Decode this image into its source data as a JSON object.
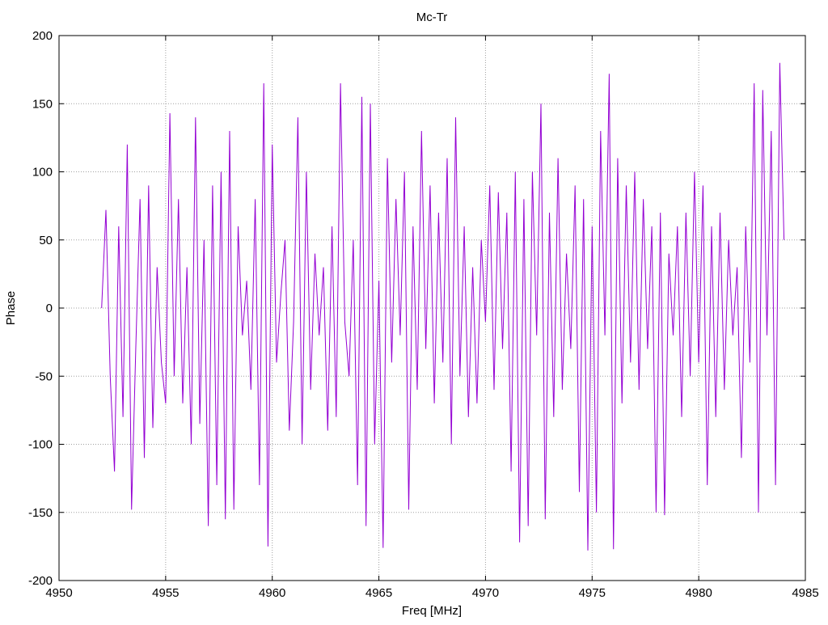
{
  "chart_data": {
    "type": "line",
    "title": "Mc-Tr",
    "xlabel": "Freq [MHz]",
    "ylabel": "Phase",
    "xlim": [
      4950,
      4985
    ],
    "ylim": [
      -200,
      200
    ],
    "xticks": [
      4950,
      4955,
      4960,
      4965,
      4970,
      4975,
      4980,
      4985
    ],
    "yticks": [
      -200,
      -150,
      -100,
      -50,
      0,
      50,
      100,
      150,
      200
    ],
    "grid": true,
    "legend": "none",
    "series": [
      {
        "name": "Phase",
        "color": "#9400d3",
        "x_start": 4952,
        "x_end": 4984,
        "values": [
          0,
          72,
          -50,
          -120,
          60,
          -80,
          120,
          -148,
          -30,
          80,
          -110,
          90,
          -88,
          30,
          -40,
          -70,
          143,
          -50,
          80,
          -70,
          30,
          -100,
          140,
          -85,
          50,
          -160,
          90,
          -130,
          100,
          -155,
          130,
          -148,
          60,
          -20,
          20,
          -60,
          80,
          -130,
          165,
          -175,
          120,
          -40,
          10,
          50,
          -90,
          -10,
          140,
          -100,
          100,
          -60,
          40,
          -20,
          30,
          -90,
          60,
          -80,
          165,
          -10,
          -50,
          50,
          -130,
          155,
          -160,
          150,
          -100,
          20,
          -176,
          110,
          -40,
          80,
          -20,
          100,
          -148,
          60,
          -60,
          130,
          -30,
          90,
          -70,
          70,
          -40,
          110,
          -100,
          140,
          -50,
          60,
          -80,
          30,
          -70,
          50,
          -10,
          90,
          -60,
          85,
          -30,
          70,
          -120,
          100,
          -172,
          80,
          -160,
          100,
          -20,
          150,
          -155,
          70,
          -80,
          110,
          -60,
          40,
          -30,
          90,
          -135,
          80,
          -178,
          60,
          -150,
          130,
          -20,
          172,
          -177,
          110,
          -70,
          90,
          -40,
          100,
          -60,
          80,
          -30,
          60,
          -150,
          70,
          -152,
          40,
          -20,
          60,
          -80,
          70,
          -50,
          100,
          -40,
          90,
          -130,
          60,
          -80,
          70,
          -60,
          50,
          -20,
          30,
          -110,
          60,
          -40,
          165,
          -150,
          160,
          -20,
          130,
          -130,
          180,
          50
        ]
      }
    ]
  }
}
